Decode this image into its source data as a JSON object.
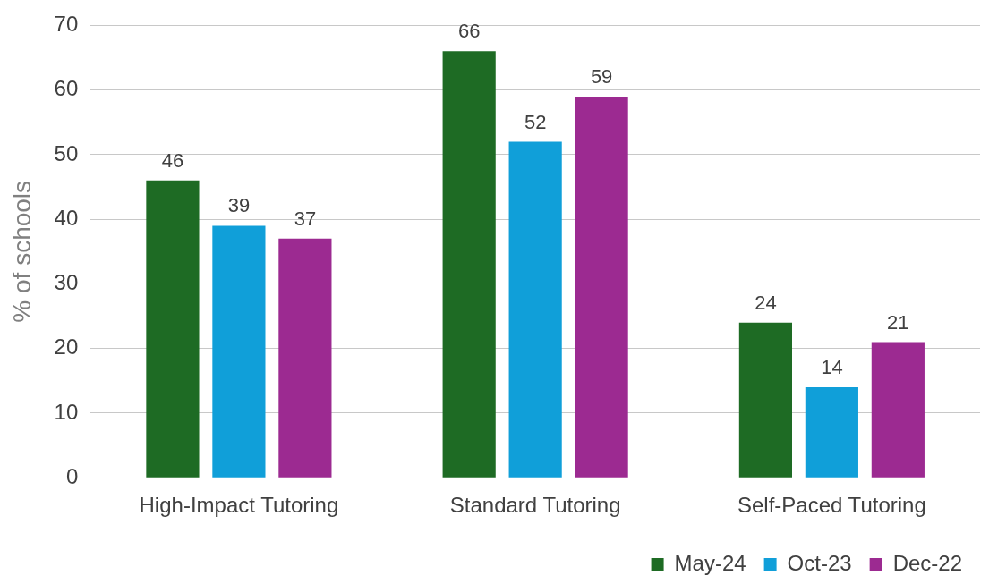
{
  "chart_data": {
    "type": "bar",
    "ylabel": "% of schools",
    "categories": [
      "High-Impact Tutoring",
      "Standard Tutoring",
      "Self-Paced Tutoring"
    ],
    "series": [
      {
        "name": "May-24",
        "color": "#1e6b24",
        "values": [
          46,
          66,
          24
        ]
      },
      {
        "name": "Oct-23",
        "color": "#109fd9",
        "values": [
          39,
          52,
          14
        ]
      },
      {
        "name": "Dec-22",
        "color": "#9c2a91",
        "values": [
          37,
          59,
          21
        ]
      }
    ],
    "ylim": [
      0,
      70
    ],
    "yticks": [
      0,
      10,
      20,
      30,
      40,
      50,
      60,
      70
    ],
    "grid": "y",
    "legend": "bottom right",
    "data_labels": true
  }
}
